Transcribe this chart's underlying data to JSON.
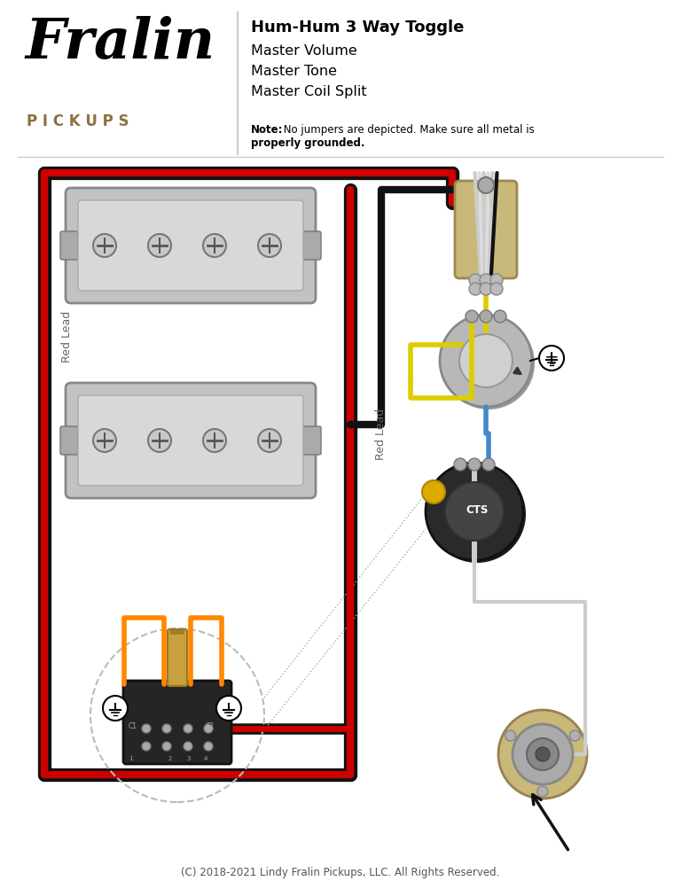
{
  "title": "Hum-Hum 3 Way Toggle",
  "subtitle_lines": [
    "Master Volume",
    "Master Tone",
    "Master Coil Split"
  ],
  "note_bold": "Note:",
  "note_rest": " No jumpers are depicted. Make sure all metal is",
  "note_rest2": "properly grounded.",
  "copyright": "(C) 2018-2021 Lindy Fralin Pickups, LLC. All Rights Reserved.",
  "brand_script": "Fralin",
  "brand_sub": "PICKUPS",
  "bg_color": "#FFFFFF",
  "title_color": "#000000",
  "red_lead_label": "Red Lead",
  "red_wire": "#CC0000",
  "black_wire": "#111111",
  "yellow_wire": "#DDCC00",
  "white_wire": "#DDDDDD",
  "blue_wire": "#4488CC",
  "orange_wire": "#FF8800",
  "pickup_fill": "#C8C8C8",
  "pickup_stroke": "#888888",
  "toggle_fill": "#C8B87A",
  "pot_fill": "#AAAAAA",
  "dark_bg": "#333333",
  "gold_color": "#8B7340",
  "cts_color": "#2A2A2A"
}
